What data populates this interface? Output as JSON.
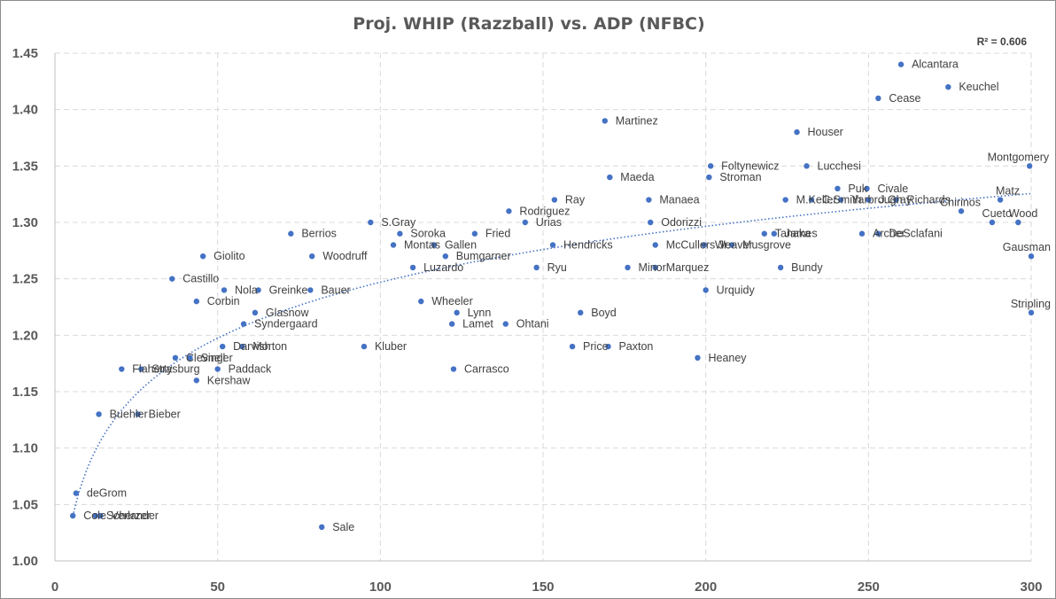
{
  "chart_data": {
    "type": "scatter",
    "title": "Proj. WHIP (Razzball) vs. ADP (NFBC)",
    "xlabel": "",
    "ylabel": "",
    "r_squared_label": "R² = 0.606",
    "xlim": [
      0,
      300
    ],
    "ylim": [
      1.0,
      1.45
    ],
    "x_ticks": [
      0,
      50,
      100,
      150,
      200,
      250,
      300
    ],
    "y_ticks": [
      1.0,
      1.05,
      1.1,
      1.15,
      1.2,
      1.25,
      1.3,
      1.35,
      1.4,
      1.45
    ],
    "y_tick_labels": [
      "1.00",
      "1.05",
      "1.10",
      "1.15",
      "1.20",
      "1.25",
      "1.30",
      "1.35",
      "1.40",
      "1.45"
    ],
    "grid": true,
    "point_color": "#4472c4",
    "trendline": {
      "type": "logarithmic",
      "style": "dotted",
      "color": "#4472c4"
    },
    "points": [
      {
        "name": "deGrom",
        "x": 6.5,
        "y": 1.06
      },
      {
        "name": "Cole",
        "x": 5.5,
        "y": 1.04
      },
      {
        "name": "Verlander",
        "x": 14,
        "y": 1.04
      },
      {
        "name": "Scherzer",
        "x": 12.5,
        "y": 1.04
      },
      {
        "name": "Buehler",
        "x": 13.5,
        "y": 1.13
      },
      {
        "name": "Bieber",
        "x": 25.5,
        "y": 1.13
      },
      {
        "name": "Flaherty",
        "x": 20.5,
        "y": 1.17
      },
      {
        "name": "Strasburg",
        "x": 26.5,
        "y": 1.17
      },
      {
        "name": "Clevinger",
        "x": 37,
        "y": 1.18
      },
      {
        "name": "Snell",
        "x": 41.5,
        "y": 1.18
      },
      {
        "name": "Kershaw",
        "x": 43.5,
        "y": 1.16
      },
      {
        "name": "Paddack",
        "x": 50,
        "y": 1.17
      },
      {
        "name": "Darvish",
        "x": 51.5,
        "y": 1.19
      },
      {
        "name": "Morton",
        "x": 57.5,
        "y": 1.19
      },
      {
        "name": "Castillo",
        "x": 36,
        "y": 1.25
      },
      {
        "name": "Giolito",
        "x": 45.5,
        "y": 1.27
      },
      {
        "name": "Nola",
        "x": 52,
        "y": 1.24
      },
      {
        "name": "Greinke",
        "x": 62.5,
        "y": 1.24
      },
      {
        "name": "Corbin",
        "x": 43.5,
        "y": 1.23
      },
      {
        "name": "Glasnow",
        "x": 61.5,
        "y": 1.22
      },
      {
        "name": "Syndergaard",
        "x": 58,
        "y": 1.21
      },
      {
        "name": "Bauer",
        "x": 78.5,
        "y": 1.24
      },
      {
        "name": "Berrios",
        "x": 72.5,
        "y": 1.29
      },
      {
        "name": "Woodruff",
        "x": 79,
        "y": 1.27
      },
      {
        "name": "S.Gray",
        "x": 97,
        "y": 1.3
      },
      {
        "name": "Soroka",
        "x": 106,
        "y": 1.29
      },
      {
        "name": "Montas",
        "x": 104,
        "y": 1.28
      },
      {
        "name": "Gallen",
        "x": 116.5,
        "y": 1.28
      },
      {
        "name": "Bumgarner",
        "x": 120,
        "y": 1.27
      },
      {
        "name": "Luzardo",
        "x": 110,
        "y": 1.26
      },
      {
        "name": "Fried",
        "x": 129,
        "y": 1.29
      },
      {
        "name": "Kluber",
        "x": 95,
        "y": 1.19
      },
      {
        "name": "Sale",
        "x": 82,
        "y": 1.03
      },
      {
        "name": "Wheeler",
        "x": 112.5,
        "y": 1.23
      },
      {
        "name": "Lynn",
        "x": 123.5,
        "y": 1.22
      },
      {
        "name": "Lamet",
        "x": 122,
        "y": 1.21
      },
      {
        "name": "Ohtani",
        "x": 138.5,
        "y": 1.21
      },
      {
        "name": "Carrasco",
        "x": 122.5,
        "y": 1.17
      },
      {
        "name": "Rodriguez",
        "x": 139.5,
        "y": 1.31
      },
      {
        "name": "Urias",
        "x": 144.5,
        "y": 1.3
      },
      {
        "name": "Ray",
        "x": 153.5,
        "y": 1.32
      },
      {
        "name": "Hendricks",
        "x": 153,
        "y": 1.28
      },
      {
        "name": "Ryu",
        "x": 148,
        "y": 1.26
      },
      {
        "name": "Boyd",
        "x": 161.5,
        "y": 1.22
      },
      {
        "name": "Price",
        "x": 159,
        "y": 1.19
      },
      {
        "name": "Paxton",
        "x": 170,
        "y": 1.19
      },
      {
        "name": "Martinez",
        "x": 169,
        "y": 1.39
      },
      {
        "name": "Maeda",
        "x": 170.5,
        "y": 1.34
      },
      {
        "name": "Manaea",
        "x": 182.5,
        "y": 1.32
      },
      {
        "name": "Odorizzi",
        "x": 183,
        "y": 1.3
      },
      {
        "name": "McCullers Jr.",
        "x": 184.5,
        "y": 1.28
      },
      {
        "name": "Minor",
        "x": 176,
        "y": 1.26
      },
      {
        "name": "Marquez",
        "x": 184.5,
        "y": 1.26
      },
      {
        "name": "Heaney",
        "x": 197.5,
        "y": 1.18
      },
      {
        "name": "Urquidy",
        "x": 200,
        "y": 1.24
      },
      {
        "name": "Weaver",
        "x": 199.5,
        "y": 1.28
      },
      {
        "name": "Musgrove",
        "x": 208,
        "y": 1.28
      },
      {
        "name": "Foltynewicz",
        "x": 201.5,
        "y": 1.35
      },
      {
        "name": "Stroman",
        "x": 201,
        "y": 1.34
      },
      {
        "name": "Tanaka",
        "x": 218,
        "y": 1.29
      },
      {
        "name": "James",
        "x": 221,
        "y": 1.29
      },
      {
        "name": "Bundy",
        "x": 223,
        "y": 1.26
      },
      {
        "name": "Houser",
        "x": 228,
        "y": 1.38
      },
      {
        "name": "Lucchesi",
        "x": 231,
        "y": 1.35
      },
      {
        "name": "M.Keller",
        "x": 224.5,
        "y": 1.32
      },
      {
        "name": "C.Smith",
        "x": 232.5,
        "y": 1.32
      },
      {
        "name": "Puk",
        "x": 240.5,
        "y": 1.33
      },
      {
        "name": "Yarbrough",
        "x": 241.5,
        "y": 1.32
      },
      {
        "name": "Civale",
        "x": 249.5,
        "y": 1.33
      },
      {
        "name": "J.Gray",
        "x": 250,
        "y": 1.32
      },
      {
        "name": "Archer",
        "x": 248,
        "y": 1.29
      },
      {
        "name": "DeSclafani",
        "x": 253,
        "y": 1.29
      },
      {
        "name": "Richards",
        "x": 258.5,
        "y": 1.32
      },
      {
        "name": "Alcantara",
        "x": 260,
        "y": 1.44
      },
      {
        "name": "Cease",
        "x": 253,
        "y": 1.41
      },
      {
        "name": "Keuchel",
        "x": 274.5,
        "y": 1.42
      },
      {
        "name": "Chirinos",
        "x": 278.5,
        "y": 1.31
      },
      {
        "name": "Matz",
        "x": 290.5,
        "y": 1.32
      },
      {
        "name": "Cueto",
        "x": 288,
        "y": 1.3
      },
      {
        "name": "Wood",
        "x": 296,
        "y": 1.3
      },
      {
        "name": "Montgomery",
        "x": 299.5,
        "y": 1.35
      },
      {
        "name": "Gausman",
        "x": 300,
        "y": 1.27
      },
      {
        "name": "Stripling",
        "x": 300,
        "y": 1.22
      }
    ]
  }
}
